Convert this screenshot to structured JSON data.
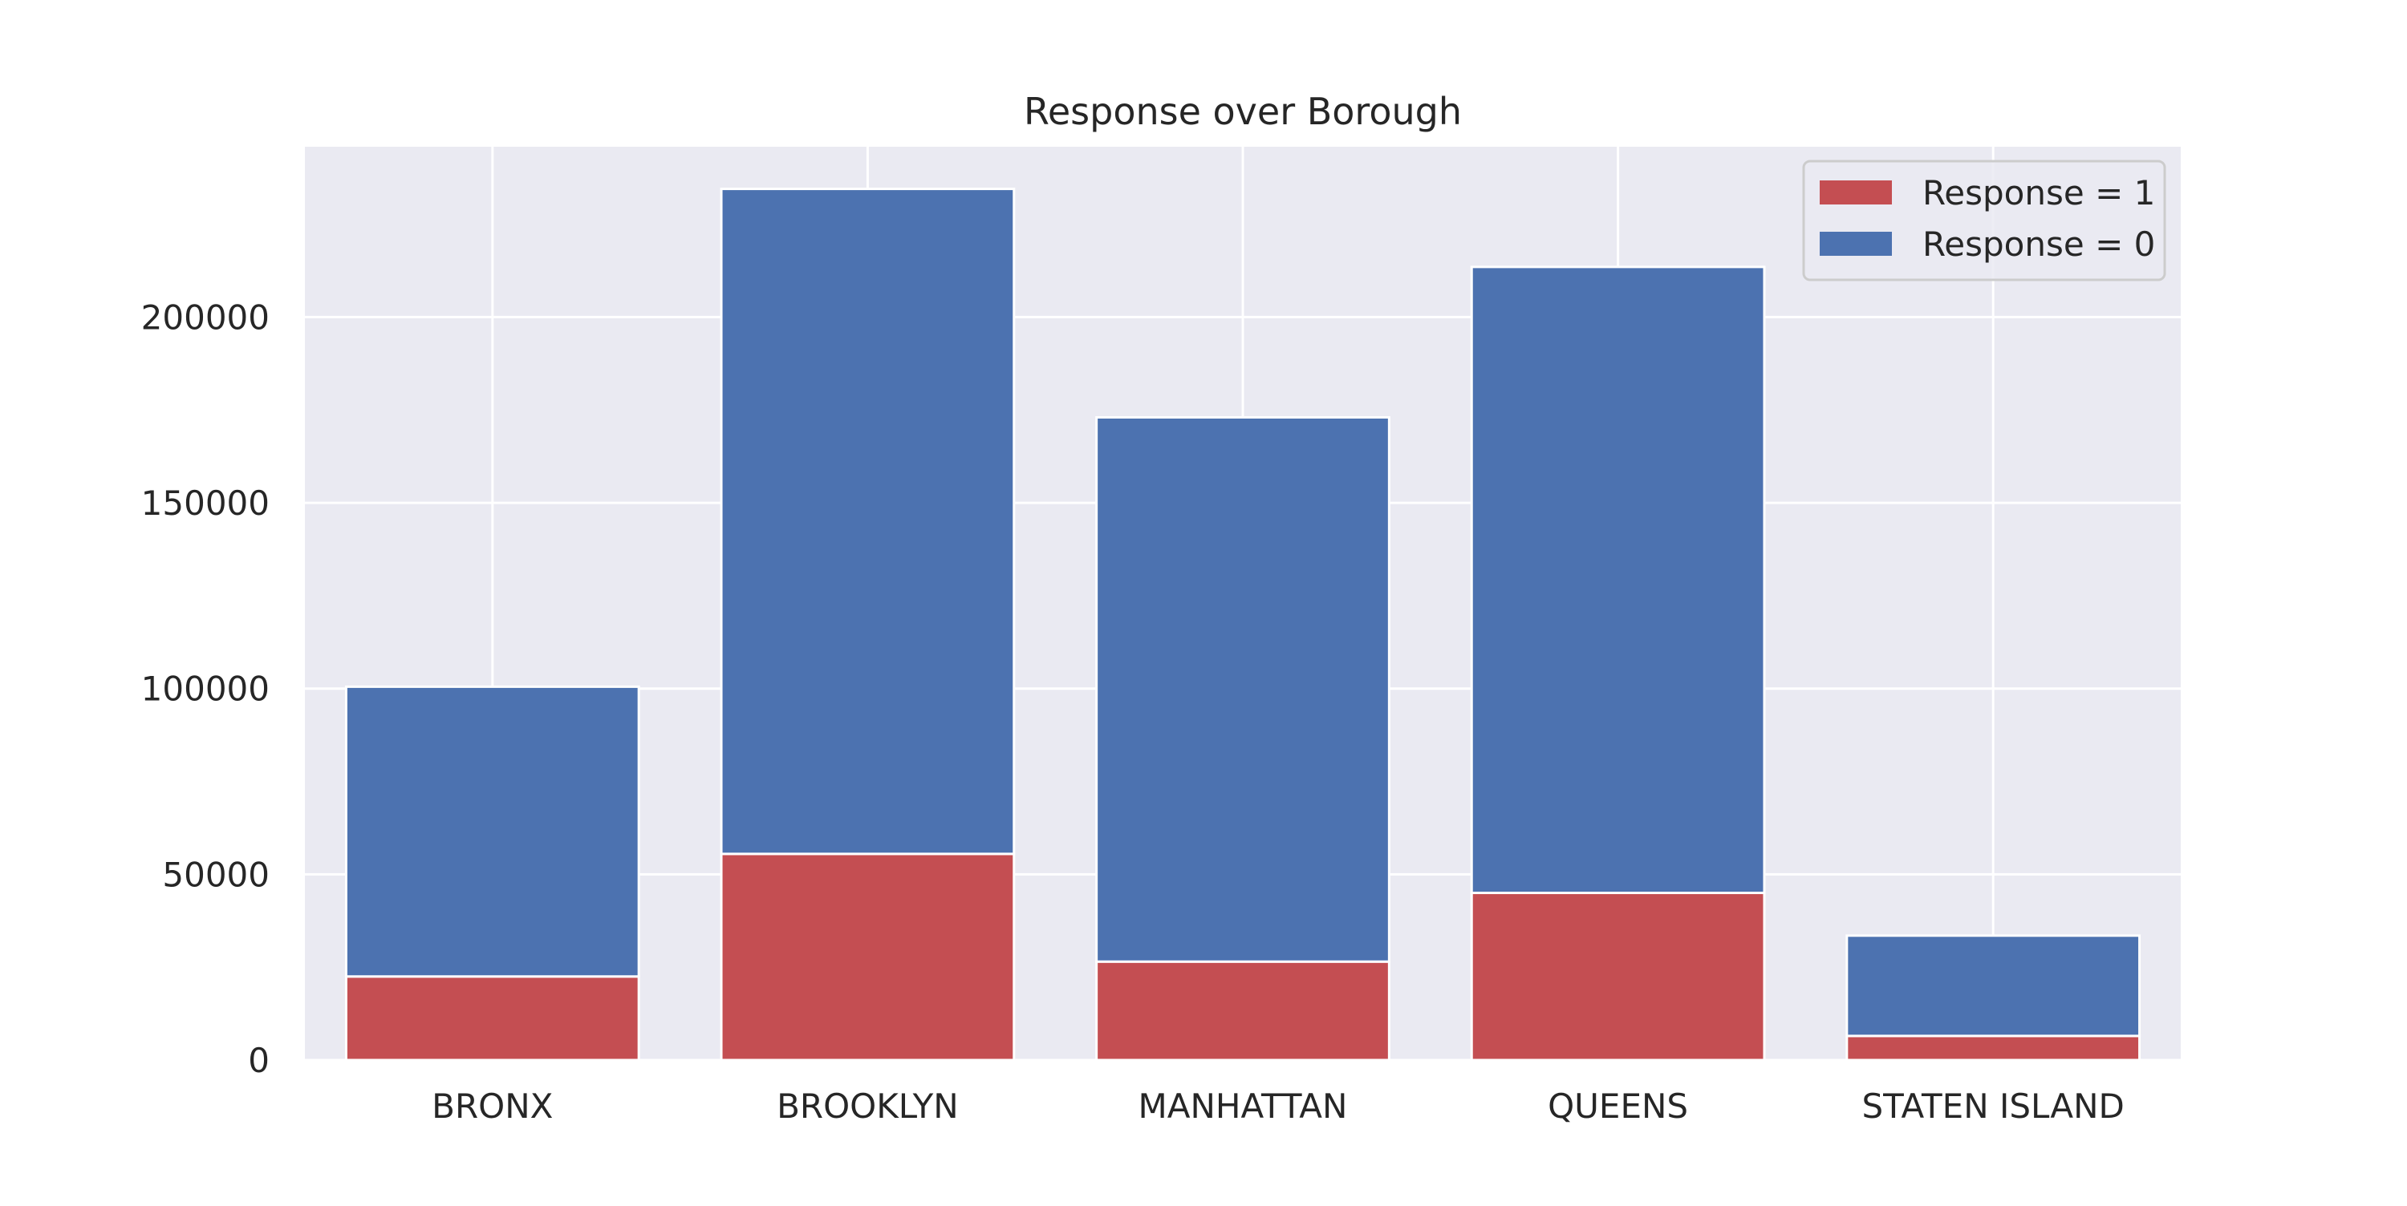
{
  "chart_data": {
    "type": "bar",
    "stacked": true,
    "title": "Response over Borough",
    "xlabel": "",
    "ylabel": "",
    "categories": [
      "BRONX",
      "BROOKLYN",
      "MANHATTAN",
      "QUEENS",
      "STATEN ISLAND"
    ],
    "series": [
      {
        "name": "Response = 1",
        "color": "#c44e52",
        "values": [
          22500,
          55500,
          26500,
          45000,
          6500
        ]
      },
      {
        "name": "Response = 0",
        "color": "#4c72b0",
        "values": [
          78000,
          179000,
          146500,
          168500,
          27000
        ]
      }
    ],
    "ylim": [
      0,
      245850
    ],
    "yticks": [
      0,
      50000,
      100000,
      150000,
      200000
    ],
    "ytick_labels": [
      "0",
      "50000",
      "100000",
      "150000",
      "200000"
    ],
    "grid": true,
    "legend_position": "top-right",
    "legend_order": [
      0,
      1
    ],
    "background": "#eaeaf2",
    "grid_color": "#ffffff"
  }
}
